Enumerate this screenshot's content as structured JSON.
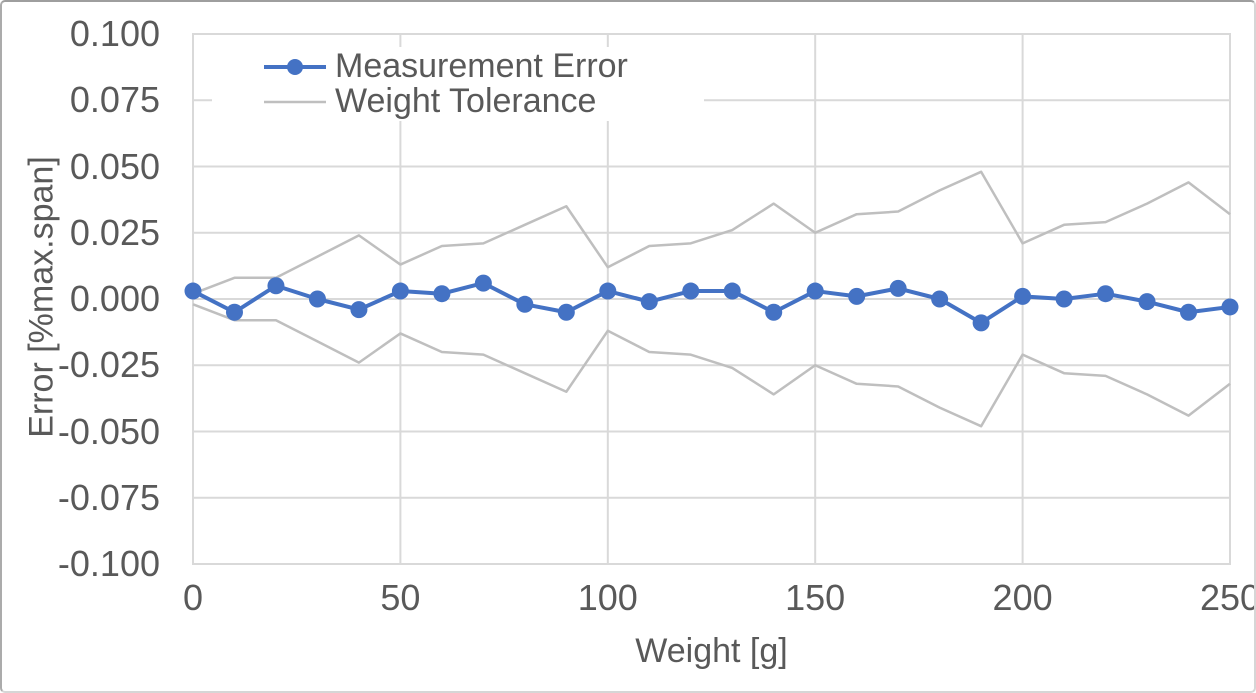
{
  "chart_data": {
    "type": "line",
    "title": "",
    "xlabel": "Weight [g]",
    "ylabel": "Error [%max.span]",
    "xlim": [
      0,
      250
    ],
    "ylim": [
      -0.1,
      0.1
    ],
    "x_ticks": [
      0,
      50,
      100,
      150,
      200,
      250
    ],
    "x_tick_labels": [
      "0",
      "50",
      "100",
      "150",
      "200",
      "250"
    ],
    "y_ticks": [
      0.1,
      0.075,
      0.05,
      0.025,
      0.0,
      -0.025,
      -0.05,
      -0.075,
      -0.1
    ],
    "y_tick_labels": [
      "0.100",
      "0.075",
      "0.050",
      "0.025",
      "0.000",
      "-0.025",
      "-0.050",
      "-0.075",
      "-0.100"
    ],
    "grid": "on",
    "legend_position": "inside-top-left",
    "x": [
      0,
      10,
      20,
      30,
      40,
      50,
      60,
      70,
      80,
      90,
      100,
      110,
      120,
      130,
      140,
      150,
      160,
      170,
      180,
      190,
      200,
      210,
      220,
      230,
      240,
      250
    ],
    "series": [
      {
        "name": "Measurement Error",
        "color": "#4472C4",
        "marker": "circle",
        "values": [
          0.003,
          -0.005,
          0.005,
          0.0,
          -0.004,
          0.003,
          0.002,
          0.006,
          -0.002,
          -0.005,
          0.003,
          -0.001,
          0.003,
          0.003,
          -0.005,
          0.003,
          0.001,
          0.004,
          0.0,
          -0.009,
          0.001,
          0.0,
          0.002,
          -0.001,
          -0.005,
          -0.003
        ]
      },
      {
        "name": "Weight Tolerance",
        "color": "#BFBFBF",
        "marker": "none",
        "values_upper": [
          0.002,
          0.008,
          0.008,
          0.016,
          0.024,
          0.013,
          0.02,
          0.021,
          0.028,
          0.035,
          0.012,
          0.02,
          0.021,
          0.026,
          0.036,
          0.025,
          0.032,
          0.033,
          0.041,
          0.048,
          0.021,
          0.028,
          0.029,
          0.036,
          0.044,
          0.032
        ],
        "values_lower": [
          -0.002,
          -0.008,
          -0.008,
          -0.016,
          -0.024,
          -0.013,
          -0.02,
          -0.021,
          -0.028,
          -0.035,
          -0.012,
          -0.02,
          -0.021,
          -0.026,
          -0.036,
          -0.025,
          -0.032,
          -0.033,
          -0.041,
          -0.048,
          -0.021,
          -0.028,
          -0.029,
          -0.036,
          -0.044,
          -0.032
        ]
      }
    ],
    "colors": {
      "gridline": "#D9D9D9",
      "tick_text": "#595959",
      "series_blue": "#4472C4",
      "series_gray": "#BFBFBF"
    }
  }
}
